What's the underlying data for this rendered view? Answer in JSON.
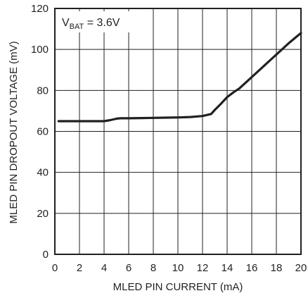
{
  "chart_data": {
    "type": "line",
    "xlabel": "MLED PIN CURRENT (mA)",
    "ylabel": "MLED PIN DROPOUT VOLTAGE (mV)",
    "xlim": [
      0,
      20
    ],
    "ylim": [
      0,
      120
    ],
    "x_ticks": [
      "0",
      "2",
      "4",
      "6",
      "8",
      "10",
      "12",
      "14",
      "16",
      "18",
      "20"
    ],
    "y_ticks": [
      "0",
      "20",
      "40",
      "60",
      "80",
      "100",
      "120"
    ],
    "grid": true,
    "annotation": {
      "prefix": "V",
      "subscript": "BAT",
      "suffix": " = 3.6V"
    },
    "series": [
      {
        "x": [
          0.3,
          1,
          2,
          3,
          4,
          4.5,
          5,
          5.3,
          6,
          7,
          8,
          9,
          10,
          11,
          12,
          12.7,
          13,
          13.5,
          14,
          14.5,
          15,
          16,
          17,
          18,
          19,
          20
        ],
        "y": [
          65,
          65,
          65,
          65,
          65,
          65.5,
          66.2,
          66.4,
          66.4,
          66.5,
          66.6,
          66.7,
          66.8,
          67,
          67.5,
          68.5,
          70.5,
          73.5,
          76.7,
          79,
          81,
          86.5,
          92,
          97.5,
          103,
          108
        ]
      }
    ],
    "line_color": "#231f20",
    "grid_color": "#231f20"
  }
}
